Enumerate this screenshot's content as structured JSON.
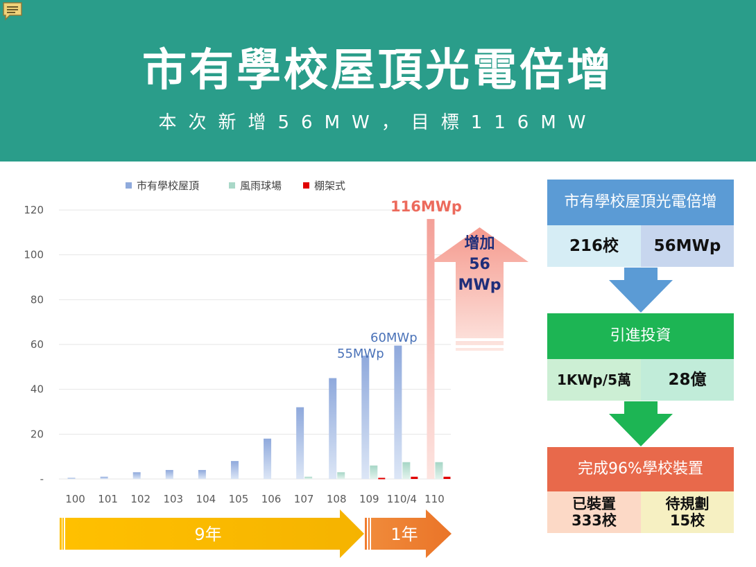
{
  "header": {
    "title": "市有學校屋頂光電倍增",
    "subtitle": "本次新增56MW，目標116MW"
  },
  "chart_data": {
    "type": "bar",
    "categories": [
      "100",
      "101",
      "102",
      "103",
      "104",
      "105",
      "106",
      "107",
      "108",
      "109",
      "110/4",
      "110"
    ],
    "series": [
      {
        "name": "市有學校屋頂",
        "values": [
          0.5,
          1,
          3,
          4,
          4,
          8,
          18,
          32,
          45,
          55,
          59.5,
          116
        ]
      },
      {
        "name": "風雨球場",
        "values": [
          0,
          0,
          0,
          0,
          0,
          0,
          0,
          1,
          3,
          6,
          7.5,
          7.5
        ]
      },
      {
        "name": "棚架式",
        "values": [
          0,
          0,
          0,
          0,
          0,
          0,
          0,
          0,
          0,
          0.5,
          1,
          1
        ]
      }
    ],
    "ylim": [
      0,
      120
    ],
    "yticks": [
      "-",
      "20",
      "40",
      "60",
      "80",
      "100",
      "120"
    ],
    "legend": "top",
    "grid": true,
    "annotations": [
      "55MWp",
      "60MWp",
      "116MWp"
    ],
    "up_arrow_text": [
      "增加",
      "56",
      "MWp"
    ],
    "timeline": [
      {
        "label": "9年",
        "color": "#f5b800"
      },
      {
        "label": "1年",
        "color": "#f07c2e"
      }
    ],
    "colors": {
      "rooftop": "#8faadc",
      "court": "#a9d8c8",
      "shelf": "#e00000",
      "last_bar": "#f4a6a0",
      "annotation_blue": "#4a72b8",
      "annotation_red": "#ec6a5c"
    }
  },
  "flow": {
    "box1": {
      "title": "市有學校屋頂光電倍增",
      "left": "216校",
      "right": "56MWp"
    },
    "box2": {
      "title": "引進投資",
      "left": "1KWp/5萬",
      "right": "28億"
    },
    "box3": {
      "title": "完成96%學校裝置",
      "left": "已裝置\n333校",
      "right": "待規劃\n15校"
    },
    "colors": {
      "blue": "#5b9bd5",
      "green": "#1db554",
      "orange": "#e8694b"
    }
  },
  "icons": {
    "top_left": "comment-icon"
  }
}
